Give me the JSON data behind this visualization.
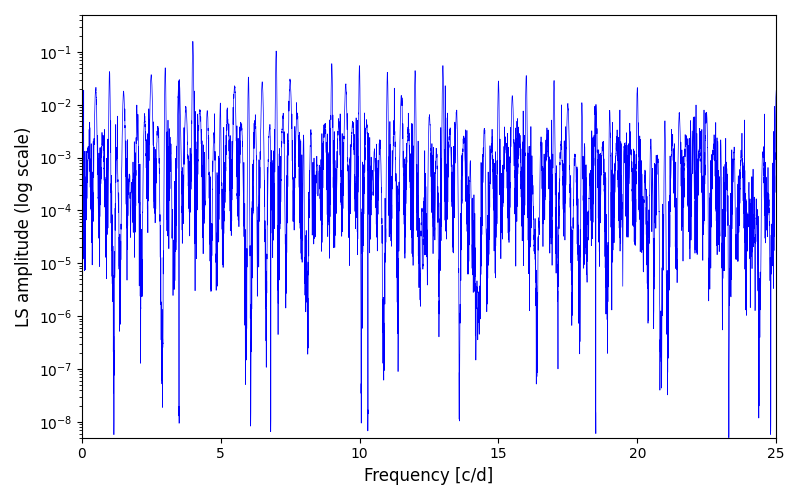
{
  "title": "",
  "xlabel": "Frequency [c/d]",
  "ylabel": "LS amplitude (log scale)",
  "xlim": [
    0,
    25
  ],
  "ylim": [
    5e-09,
    0.5
  ],
  "line_color": "#0000ff",
  "line_width": 0.5,
  "figsize": [
    8.0,
    5.0
  ],
  "dpi": 100,
  "yscale": "log",
  "xticks": [
    0,
    5,
    10,
    15,
    20,
    25
  ],
  "background_color": "#ffffff",
  "freq_max": 25.0,
  "n_points": 8000,
  "seed": 12345
}
